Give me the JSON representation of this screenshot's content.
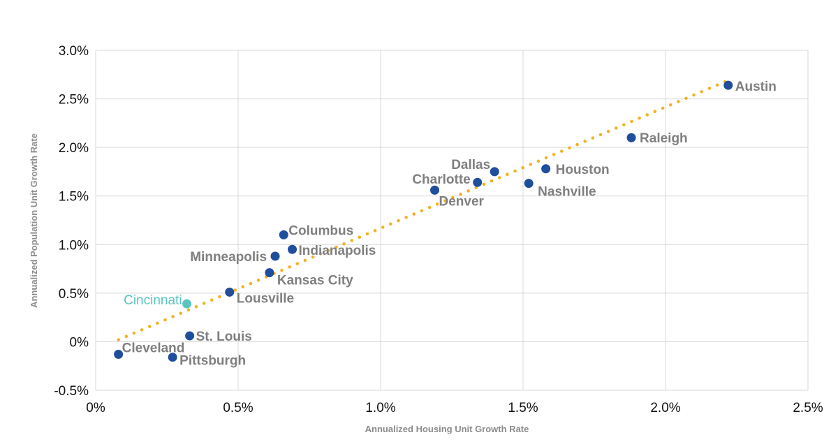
{
  "chart_data": {
    "type": "scatter",
    "xlabel": "Annualized Housing Unit Growth Rate",
    "ylabel": "Annualized Population Unit Growth Rate",
    "xlim": [
      0,
      2.5
    ],
    "ylim": [
      -0.5,
      3.0
    ],
    "x_ticks": [
      "0%",
      "0.5%",
      "1.0%",
      "1.5%",
      "2.0%",
      "2.5%"
    ],
    "y_ticks": [
      "-0.5%",
      "0%",
      "0.5%",
      "1.0%",
      "1.5%",
      "2.0%",
      "2.5%",
      "3.0%"
    ],
    "grid": true,
    "colors": {
      "point": "#1f4e9c",
      "highlight": "#5bc4c0",
      "trend": "#f0b323",
      "label": "#7f7f7f"
    },
    "points": [
      {
        "label": "Austin",
        "x": 2.22,
        "y": 2.64
      },
      {
        "label": "Raleigh",
        "x": 1.88,
        "y": 2.1
      },
      {
        "label": "Houston",
        "x": 1.58,
        "y": 1.78
      },
      {
        "label": "Nashville",
        "x": 1.52,
        "y": 1.63
      },
      {
        "label": "Dallas",
        "x": 1.4,
        "y": 1.75
      },
      {
        "label": "Charlotte",
        "x": 1.34,
        "y": 1.64
      },
      {
        "label": "Denver",
        "x": 1.19,
        "y": 1.56
      },
      {
        "label": "Columbus",
        "x": 0.66,
        "y": 1.1
      },
      {
        "label": "Indianapolis",
        "x": 0.69,
        "y": 0.95
      },
      {
        "label": "Minneapolis",
        "x": 0.63,
        "y": 0.88
      },
      {
        "label": "Kansas City",
        "x": 0.61,
        "y": 0.71
      },
      {
        "label": "Lousville",
        "x": 0.47,
        "y": 0.51
      },
      {
        "label": "Cincinnati",
        "x": 0.32,
        "y": 0.39,
        "highlight": true
      },
      {
        "label": "St. Louis",
        "x": 0.33,
        "y": 0.06
      },
      {
        "label": "Pittsburgh",
        "x": 0.27,
        "y": -0.16
      },
      {
        "label": "Cleveland",
        "x": 0.08,
        "y": -0.13
      }
    ],
    "trendline": {
      "x": [
        0.08,
        2.22
      ],
      "y": [
        0.02,
        2.69
      ]
    }
  }
}
